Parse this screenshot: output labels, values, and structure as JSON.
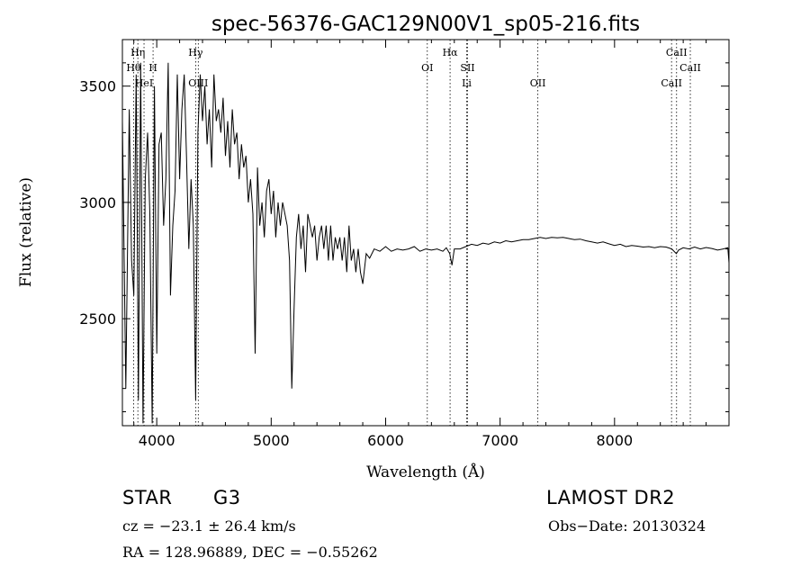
{
  "chart_data": {
    "type": "line",
    "title": "spec-56376-GAC129N00V1_sp05-216.fits",
    "xlabel": "Wavelength (Å)",
    "ylabel": "Flux (relative)",
    "xlim": [
      3700,
      9000
    ],
    "ylim": [
      2040,
      3700
    ],
    "xticks": [
      4000,
      5000,
      6000,
      7000,
      8000
    ],
    "yticks": [
      2500,
      3000,
      3500
    ],
    "grid": false,
    "series": [
      {
        "x": [
          3700,
          3730,
          3760,
          3780,
          3800,
          3820,
          3840,
          3860,
          3880,
          3900,
          3920,
          3940,
          3960,
          3980,
          4000,
          4020,
          4040,
          4060,
          4080,
          4100,
          4120,
          4140,
          4160,
          4180,
          4200,
          4220,
          4240,
          4260,
          4280,
          4300,
          4320,
          4340,
          4360,
          4380,
          4400,
          4420,
          4440,
          4460,
          4480,
          4500,
          4520,
          4540,
          4560,
          4580,
          4600,
          4620,
          4640,
          4660,
          4680,
          4700,
          4720,
          4740,
          4760,
          4780,
          4800,
          4820,
          4840,
          4860,
          4880,
          4900,
          4920,
          4940,
          4960,
          4980,
          5000,
          5020,
          5040,
          5060,
          5080,
          5100,
          5120,
          5140,
          5160,
          5180,
          5200,
          5220,
          5240,
          5260,
          5280,
          5300,
          5320,
          5340,
          5360,
          5380,
          5400,
          5420,
          5440,
          5460,
          5480,
          5500,
          5520,
          5540,
          5560,
          5580,
          5600,
          5620,
          5640,
          5660,
          5680,
          5700,
          5720,
          5740,
          5760,
          5780,
          5800,
          5830,
          5860,
          5900,
          5950,
          6000,
          6050,
          6100,
          6150,
          6200,
          6250,
          6300,
          6350,
          6400,
          6450,
          6500,
          6530,
          6560,
          6580,
          6600,
          6650,
          6700,
          6750,
          6800,
          6850,
          6900,
          6950,
          7000,
          7050,
          7100,
          7150,
          7200,
          7250,
          7300,
          7350,
          7400,
          7450,
          7500,
          7550,
          7600,
          7650,
          7700,
          7750,
          7800,
          7850,
          7900,
          7950,
          8000,
          8050,
          8100,
          8150,
          8200,
          8250,
          8300,
          8350,
          8400,
          8450,
          8500,
          8540,
          8560,
          8600,
          8650,
          8700,
          8750,
          8800,
          8850,
          8900,
          8950,
          8990,
          9000
        ],
        "y": [
          3350,
          2200,
          3400,
          2750,
          2600,
          3550,
          2150,
          3600,
          2050,
          3100,
          3300,
          2950,
          2050,
          3500,
          2350,
          3250,
          3300,
          2900,
          3100,
          3600,
          2600,
          2900,
          3050,
          3550,
          3100,
          3400,
          3550,
          3200,
          2800,
          3100,
          2900,
          2150,
          3300,
          3550,
          3350,
          3500,
          3250,
          3400,
          3150,
          3550,
          3350,
          3400,
          3300,
          3450,
          3200,
          3350,
          3150,
          3400,
          3250,
          3300,
          3100,
          3250,
          3150,
          3200,
          3000,
          3100,
          2950,
          2350,
          3150,
          2900,
          3000,
          2850,
          3050,
          3100,
          2950,
          3050,
          2850,
          3000,
          2900,
          3000,
          2950,
          2900,
          2750,
          2200,
          2550,
          2850,
          2950,
          2800,
          2900,
          2700,
          2950,
          2900,
          2850,
          2900,
          2750,
          2850,
          2900,
          2800,
          2900,
          2750,
          2900,
          2750,
          2850,
          2800,
          2850,
          2750,
          2850,
          2700,
          2900,
          2750,
          2800,
          2700,
          2800,
          2700,
          2650,
          2780,
          2760,
          2800,
          2790,
          2810,
          2790,
          2800,
          2795,
          2800,
          2810,
          2790,
          2800,
          2795,
          2800,
          2790,
          2805,
          2780,
          2730,
          2800,
          2800,
          2810,
          2820,
          2815,
          2825,
          2820,
          2830,
          2825,
          2835,
          2830,
          2835,
          2840,
          2840,
          2845,
          2850,
          2845,
          2850,
          2848,
          2850,
          2845,
          2840,
          2842,
          2835,
          2830,
          2825,
          2830,
          2822,
          2815,
          2820,
          2810,
          2815,
          2812,
          2808,
          2810,
          2805,
          2810,
          2808,
          2800,
          2780,
          2795,
          2805,
          2800,
          2808,
          2800,
          2806,
          2802,
          2795,
          2800,
          2805,
          2740
        ]
      }
    ],
    "annotations": [
      {
        "label": "Hη",
        "x": 3835,
        "row": 1
      },
      {
        "label": "Hθ",
        "x": 3798,
        "row": 2
      },
      {
        "label": "H",
        "x": 3968,
        "row": 2
      },
      {
        "label": "HeI",
        "x": 3889,
        "row": 3
      },
      {
        "label": "Hγ",
        "x": 4340,
        "row": 1
      },
      {
        "label": "OIII",
        "x": 4363,
        "row": 3
      },
      {
        "label": "Hα",
        "x": 6563,
        "row": 1
      },
      {
        "label": "OI",
        "x": 6364,
        "row": 2
      },
      {
        "label": "SII",
        "x": 6716,
        "row": 2
      },
      {
        "label": "Li",
        "x": 6708,
        "row": 3
      },
      {
        "label": "OII",
        "x": 7330,
        "row": 3
      },
      {
        "label": "CaII",
        "x": 8542,
        "row": 1
      },
      {
        "label": "CaII",
        "x": 8662,
        "row": 2
      },
      {
        "label": "CaII",
        "x": 8498,
        "row": 3
      }
    ]
  },
  "info": {
    "object_class": "STAR",
    "subclass": "G3",
    "survey": "LAMOST DR2",
    "redshift": "cz = −23.1 ± 26.4 km/s",
    "obs_date": "Obs−Date: 20130324",
    "coords": "RA = 128.96889, DEC =  −0.55262"
  }
}
